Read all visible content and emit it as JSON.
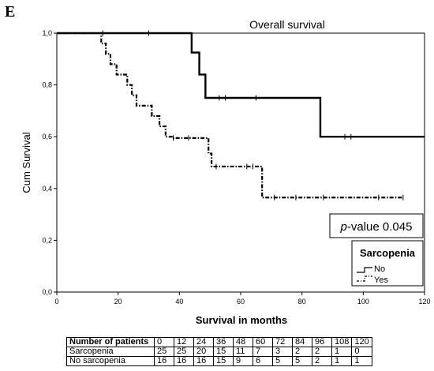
{
  "panel_label": "E",
  "chart_data": {
    "type": "line",
    "title": "Overall survival",
    "xlabel": "Survival in months",
    "ylabel": "Cum Survival",
    "xlim": [
      0,
      120
    ],
    "ylim": [
      0,
      1
    ],
    "x_ticks": [
      0,
      20,
      40,
      60,
      80,
      100,
      120
    ],
    "x_tick_labels": [
      "0",
      "20",
      "40",
      "60",
      "80",
      "100",
      "120"
    ],
    "y_ticks": [
      0,
      0.2,
      0.4,
      0.6,
      0.8,
      1.0
    ],
    "y_tick_labels": [
      "0,0",
      "0,2",
      "0,4",
      "0,6",
      "0,8",
      "1,0"
    ],
    "grid": false,
    "annotation": {
      "italic": "p",
      "rest": "-value 0.045"
    },
    "legend": {
      "title": "Sarcopenia",
      "placement": "bottom-right",
      "entries": [
        "No",
        "Yes"
      ]
    },
    "series": [
      {
        "name": "No",
        "style": "solid",
        "color": "#000000",
        "x": [
          0,
          44,
          46.5,
          48.5,
          49.5,
          86,
          120
        ],
        "y": [
          1.0,
          0.925,
          0.84,
          0.75,
          0.75,
          0.6,
          0.6
        ],
        "censored": [
          [
            15,
            1.0
          ],
          [
            30,
            1.0
          ],
          [
            53,
            0.75
          ],
          [
            55,
            0.75
          ],
          [
            65,
            0.75
          ],
          [
            94,
            0.6
          ],
          [
            96,
            0.6
          ],
          [
            120,
            0.6
          ]
        ]
      },
      {
        "name": "Yes",
        "style": "dashdot",
        "color": "#000000",
        "x": [
          0,
          14.5,
          16,
          17.5,
          19.5,
          23,
          24.5,
          26,
          27.5,
          31,
          33.5,
          35.5,
          37.5,
          49.5,
          50.5,
          67,
          113
        ],
        "y": [
          1.0,
          0.96,
          0.92,
          0.88,
          0.84,
          0.8,
          0.76,
          0.72,
          0.72,
          0.68,
          0.64,
          0.6,
          0.595,
          0.535,
          0.485,
          0.365,
          0.365
        ],
        "censored": [
          [
            38,
            0.595
          ],
          [
            43,
            0.595
          ],
          [
            52,
            0.485
          ],
          [
            62,
            0.485
          ],
          [
            64,
            0.485
          ],
          [
            71,
            0.365
          ],
          [
            78,
            0.365
          ],
          [
            87,
            0.365
          ],
          [
            105,
            0.365
          ],
          [
            113,
            0.365
          ]
        ]
      }
    ],
    "risk_table": {
      "header": [
        "Number of patients",
        "0",
        "12",
        "24",
        "36",
        "48",
        "60",
        "72",
        "84",
        "96",
        "108",
        "120"
      ],
      "rows": [
        {
          "label": "Sarcopenia",
          "values": [
            "25",
            "25",
            "20",
            "15",
            "11",
            "7",
            "3",
            "2",
            "2",
            "1",
            "0"
          ]
        },
        {
          "label": "No sarcopenia",
          "values": [
            "16",
            "16",
            "16",
            "15",
            "9",
            "6",
            "5",
            "5",
            "2",
            "1",
            "1"
          ]
        }
      ]
    }
  }
}
